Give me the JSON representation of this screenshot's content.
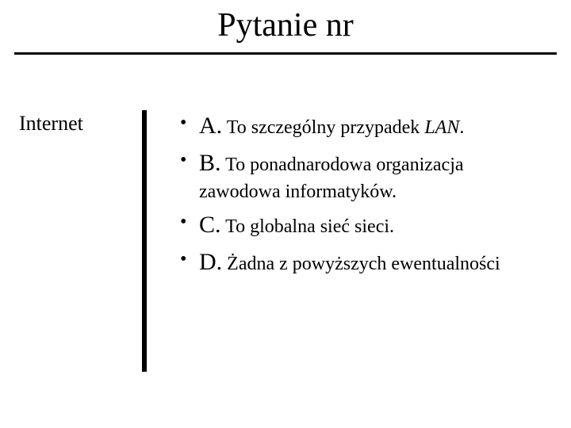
{
  "title": "Pytanie nr",
  "subject": "Internet",
  "options": [
    {
      "label": "A.",
      "text_html": "To szczególny przypadek <em>LAN</em>."
    },
    {
      "label": "B.",
      "text_html": "To ponadnarodowa organizacja zawodowa informatyków."
    },
    {
      "label": "C.",
      "text_html": "To globalna sieć sieci."
    },
    {
      "label": "D.",
      "text_html": "Żadna z powyższych ewentualności"
    }
  ],
  "styling": {
    "background_color": "#ffffff",
    "text_color": "#000000",
    "font_family": "Times New Roman",
    "title_fontsize": 42,
    "subject_fontsize": 26,
    "label_fontsize": 30,
    "text_fontsize": 24,
    "hr_thickness": 3,
    "vbar_thickness": 6,
    "vbar_height": 330,
    "slide_width": 720,
    "slide_height": 540
  }
}
